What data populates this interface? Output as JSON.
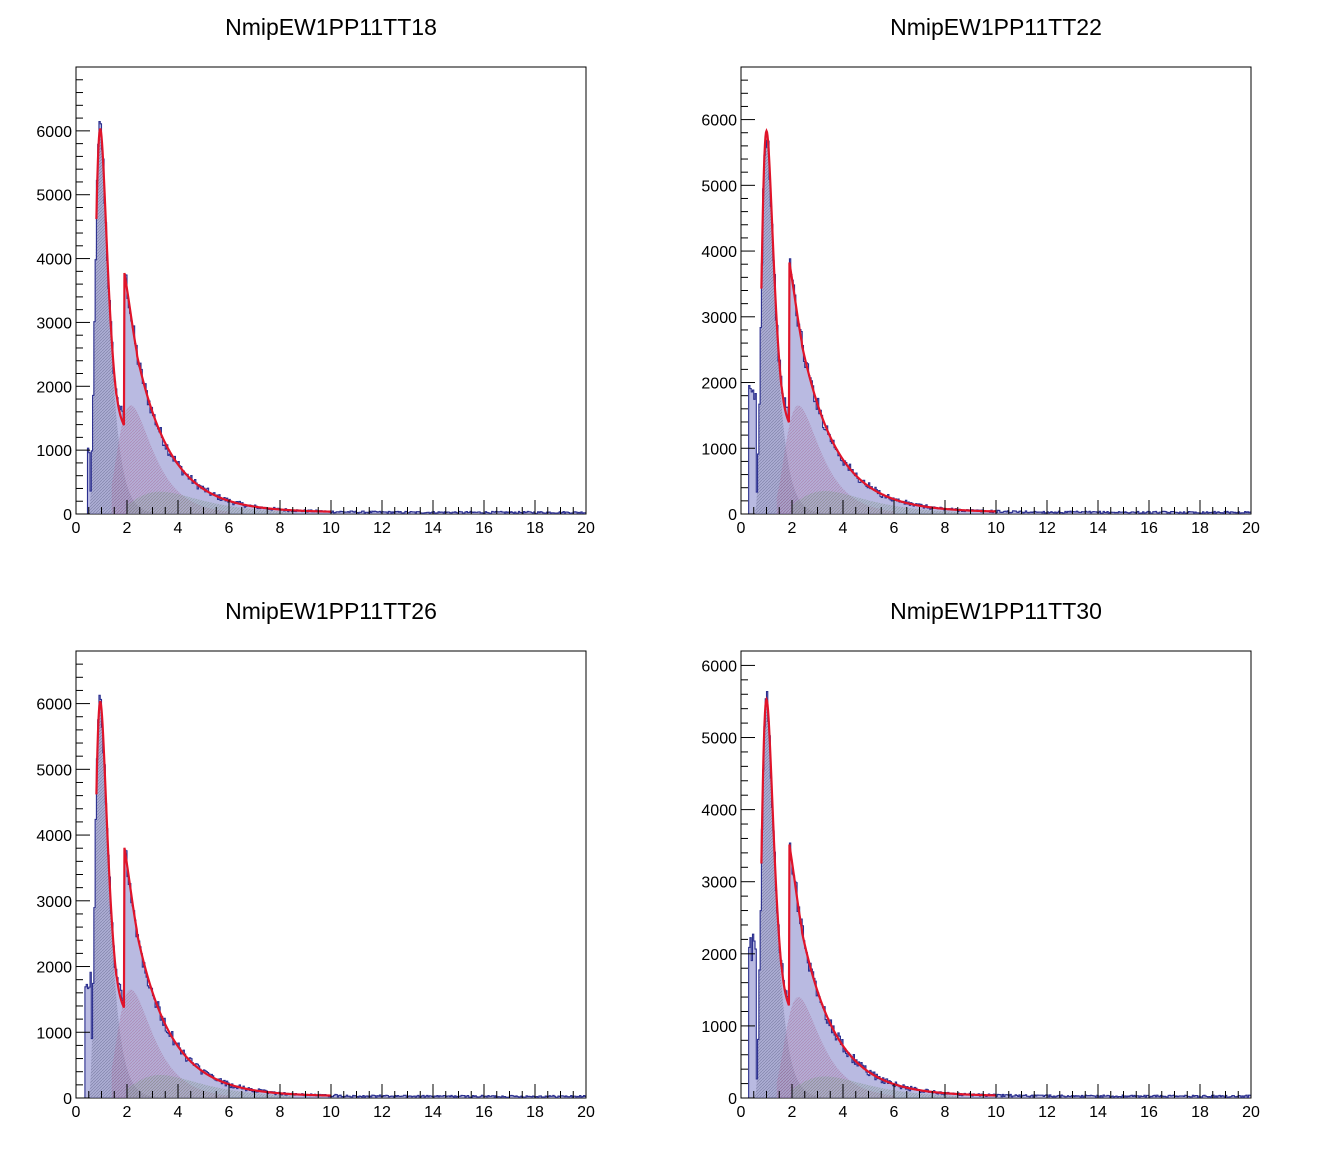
{
  "chart_data": [
    {
      "type": "histogram",
      "title": "NmipEW1PP11TT18",
      "xlim": [
        0,
        20
      ],
      "ylim": [
        0,
        7000
      ],
      "x_ticks": [
        "0",
        "2",
        "4",
        "6",
        "8",
        "10",
        "12",
        "14",
        "16",
        "18",
        "20"
      ],
      "y_ticks": [
        "0",
        "1000",
        "2000",
        "3000",
        "4000",
        "5000",
        "6000"
      ],
      "grid": false,
      "colors": {
        "histogram": "#2b2f8f",
        "histogram_fill": "#7f82c9",
        "fit": "#e0142a",
        "component1": "#3a3a3a",
        "component2": "#c94a55",
        "component3": "#6fa82a"
      },
      "params": {
        "dip_start": 0.45,
        "dip_end": 0.55,
        "dip_level": 1000,
        "c1_amp": 6000,
        "c1_mpv": 0.95,
        "c1_width": 0.17,
        "c2_amp": 1700,
        "c2_mpv": 2.15,
        "c2_width": 0.45,
        "c3_amp": 350,
        "c3_mpv": 3.3,
        "c3_width": 0.9,
        "tail_amp": 2400,
        "tail_start": 1.9,
        "tail_decay": 1.45
      }
    },
    {
      "type": "histogram",
      "title": "NmipEW1PP11TT22",
      "xlim": [
        0,
        20
      ],
      "ylim": [
        0,
        6800
      ],
      "x_ticks": [
        "0",
        "2",
        "4",
        "6",
        "8",
        "10",
        "12",
        "14",
        "16",
        "18",
        "20"
      ],
      "y_ticks": [
        "0",
        "1000",
        "2000",
        "3000",
        "4000",
        "5000",
        "6000"
      ],
      "grid": false,
      "colors": {
        "histogram": "#2b2f8f",
        "histogram_fill": "#7f82c9",
        "fit": "#e0142a",
        "component1": "#3a3a3a",
        "component2": "#c94a55",
        "component3": "#6fa82a"
      },
      "params": {
        "dip_start": 0.3,
        "dip_end": 0.55,
        "dip_level": 1800,
        "c1_amp": 5800,
        "c1_mpv": 1.0,
        "c1_width": 0.17,
        "c2_amp": 1650,
        "c2_mpv": 2.25,
        "c2_width": 0.45,
        "c3_amp": 350,
        "c3_mpv": 3.3,
        "c3_width": 0.9,
        "tail_amp": 2450,
        "tail_start": 1.9,
        "tail_decay": 1.5
      }
    },
    {
      "type": "histogram",
      "title": "NmipEW1PP11TT26",
      "xlim": [
        0,
        20
      ],
      "ylim": [
        0,
        6800
      ],
      "x_ticks": [
        "0",
        "2",
        "4",
        "6",
        "8",
        "10",
        "12",
        "14",
        "16",
        "18",
        "20"
      ],
      "y_ticks": [
        "0",
        "1000",
        "2000",
        "3000",
        "4000",
        "5000",
        "6000"
      ],
      "grid": false,
      "colors": {
        "histogram": "#2b2f8f",
        "histogram_fill": "#7f82c9",
        "fit": "#e0142a",
        "component1": "#3a3a3a",
        "component2": "#c94a55",
        "component3": "#6fa82a"
      },
      "params": {
        "dip_start": 0.35,
        "dip_end": 0.55,
        "dip_level": 1800,
        "c1_amp": 6000,
        "c1_mpv": 0.95,
        "c1_width": 0.17,
        "c2_amp": 1650,
        "c2_mpv": 2.15,
        "c2_width": 0.45,
        "c3_amp": 350,
        "c3_mpv": 3.3,
        "c3_width": 0.9,
        "tail_amp": 2450,
        "tail_start": 1.9,
        "tail_decay": 1.45
      }
    },
    {
      "type": "histogram",
      "title": "NmipEW1PP11TT30",
      "xlim": [
        0,
        20
      ],
      "ylim": [
        0,
        6200
      ],
      "x_ticks": [
        "0",
        "2",
        "4",
        "6",
        "8",
        "10",
        "12",
        "14",
        "16",
        "18",
        "20"
      ],
      "y_ticks": [
        "0",
        "1000",
        "2000",
        "3000",
        "4000",
        "5000",
        "6000"
      ],
      "grid": false,
      "colors": {
        "histogram": "#2b2f8f",
        "histogram_fill": "#7f82c9",
        "fit": "#e0142a",
        "component1": "#3a3a3a",
        "component2": "#c94a55",
        "component3": "#6fa82a"
      },
      "params": {
        "dip_start": 0.3,
        "dip_end": 0.55,
        "dip_level": 2100,
        "c1_amp": 5500,
        "c1_mpv": 1.0,
        "c1_width": 0.17,
        "c2_amp": 1400,
        "c2_mpv": 2.25,
        "c2_width": 0.45,
        "c3_amp": 300,
        "c3_mpv": 3.3,
        "c3_width": 0.9,
        "tail_amp": 2250,
        "tail_start": 1.9,
        "tail_decay": 1.45
      }
    }
  ]
}
